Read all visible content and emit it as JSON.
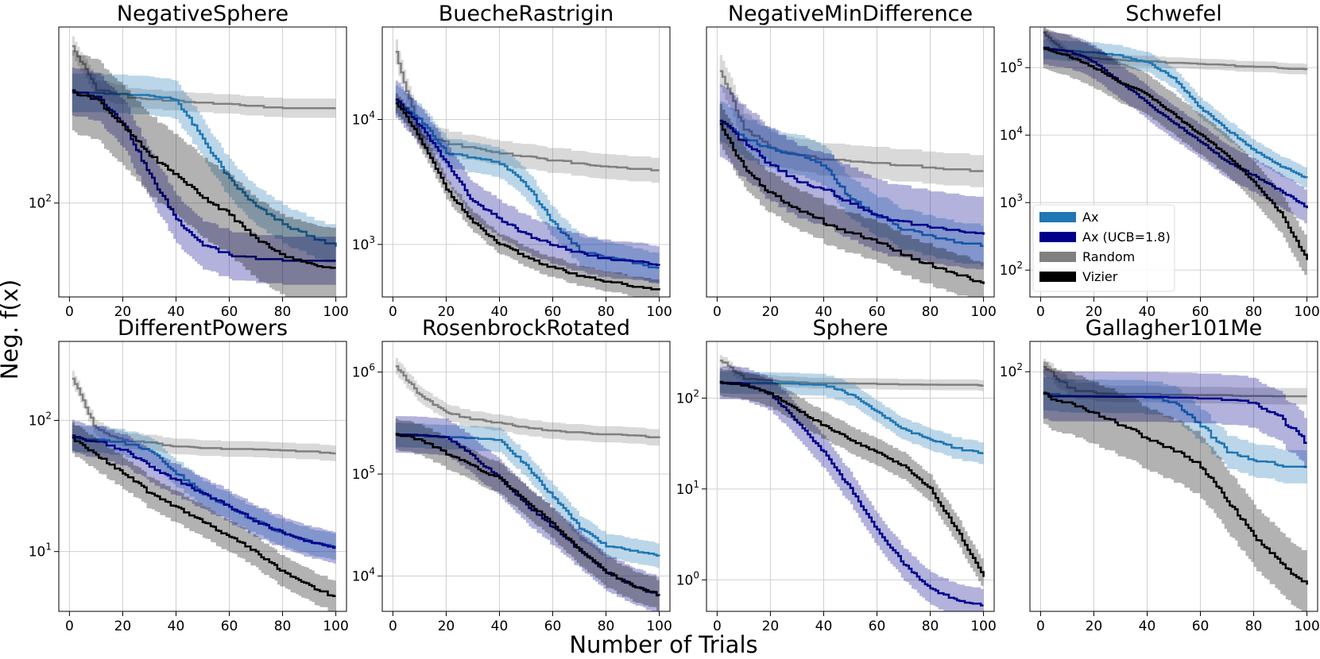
{
  "figure": {
    "ylabel": "Neg. f(x)",
    "xlabel": "Number of Trials"
  },
  "legend": {
    "location": "inside Schwefel panel, lower-left",
    "entries": [
      {
        "name": "Ax",
        "color": "#1f77b4"
      },
      {
        "name": "Ax (UCB=1.8)",
        "color": "#00008b"
      },
      {
        "name": "Random",
        "color": "#808080"
      },
      {
        "name": "Vizier",
        "color": "#000000"
      }
    ]
  },
  "colors": {
    "Ax": "#1f77b4",
    "Ax (UCB=1.8)": "#00008b",
    "Random": "#808080",
    "Vizier": "#000000",
    "grid": "#d0d0d0"
  },
  "chart_data": [
    {
      "type": "line",
      "title": "NegativeSphere",
      "yscale": "log",
      "xlim": [
        -4,
        104
      ],
      "ylim": [
        26,
        1250
      ],
      "xticks": [
        0,
        20,
        40,
        60,
        80,
        100
      ],
      "xtick_labels": [
        "0",
        "20",
        "40",
        "60",
        "80",
        "100"
      ],
      "yticks": [
        100
      ],
      "ytick_labels": [
        "10^2"
      ],
      "x": [
        0,
        10,
        20,
        30,
        40,
        50,
        60,
        70,
        80,
        90,
        100
      ],
      "series": [
        {
          "name": "Ax",
          "values": [
            500,
            490,
            485,
            480,
            440,
            250,
            140,
            95,
            75,
            62,
            55
          ],
          "band": 0.12
        },
        {
          "name": "Ax (UCB=1.8)",
          "values": [
            500,
            470,
            320,
            150,
            80,
            55,
            48,
            46,
            45,
            45,
            45
          ],
          "band": 0.15
        },
        {
          "name": "Random",
          "values": [
            1000,
            520,
            470,
            450,
            440,
            430,
            420,
            410,
            400,
            400,
            400
          ],
          "band": 0.06
        },
        {
          "name": "Vizier",
          "values": [
            500,
            450,
            300,
            200,
            150,
            110,
            85,
            60,
            48,
            42,
            40
          ],
          "band": 0.25
        }
      ]
    },
    {
      "type": "line",
      "title": "BuecheRastrigin",
      "yscale": "log",
      "xlim": [
        -4,
        104
      ],
      "ylim": [
        380,
        55000
      ],
      "xticks": [
        0,
        20,
        40,
        60,
        80,
        100
      ],
      "xtick_labels": [
        "0",
        "20",
        "40",
        "60",
        "80",
        "100"
      ],
      "yticks": [
        1000,
        10000
      ],
      "ytick_labels": [
        "10^3",
        "10^4"
      ],
      "x": [
        0,
        10,
        20,
        30,
        40,
        50,
        60,
        70,
        80,
        90,
        100
      ],
      "series": [
        {
          "name": "Ax",
          "values": [
            15000,
            10000,
            5500,
            5000,
            4500,
            3000,
            1500,
            900,
            800,
            720,
            650
          ],
          "band": 0.12
        },
        {
          "name": "Ax (UCB=1.8)",
          "values": [
            15000,
            9000,
            4500,
            2200,
            1600,
            1200,
            1000,
            850,
            780,
            740,
            700
          ],
          "band": 0.15
        },
        {
          "name": "Random",
          "values": [
            40000,
            7500,
            6500,
            6000,
            5500,
            5000,
            4800,
            4500,
            4300,
            4100,
            4000
          ],
          "band": 0.1
        },
        {
          "name": "Vizier",
          "values": [
            15000,
            7000,
            2800,
            1500,
            1000,
            800,
            650,
            570,
            510,
            470,
            440
          ],
          "band": 0.08
        }
      ]
    },
    {
      "type": "line",
      "title": "NegativeMinDifference",
      "yscale": "log",
      "xlim": [
        -4,
        104
      ],
      "ylim": [
        5.5,
        120
      ],
      "xticks": [
        0,
        20,
        40,
        60,
        80,
        100
      ],
      "xtick_labels": [
        "0",
        "20",
        "40",
        "60",
        "80",
        "100"
      ],
      "yticks": [],
      "ytick_labels": [],
      "x": [
        0,
        10,
        20,
        30,
        40,
        50,
        60,
        70,
        80,
        90,
        100
      ],
      "series": [
        {
          "name": "Ax",
          "values": [
            42,
            34,
            30,
            28,
            25,
            17,
            14,
            12,
            11,
            10.5,
            10
          ],
          "band": 0.1
        },
        {
          "name": "Ax (UCB=1.8)",
          "values": [
            42,
            32,
            25,
            21,
            19,
            16,
            14,
            13,
            12.5,
            12,
            11.5
          ],
          "band": 0.18
        },
        {
          "name": "Random",
          "values": [
            80,
            38,
            30,
            28,
            27,
            26.5,
            26,
            25,
            24.5,
            24,
            23
          ],
          "band": 0.08
        },
        {
          "name": "Vizier",
          "values": [
            42,
            24,
            18,
            15,
            13,
            11.5,
            10.5,
            9,
            8,
            7.2,
            6.5
          ],
          "band": 0.1
        }
      ]
    },
    {
      "type": "line",
      "title": "Schwefel",
      "yscale": "log",
      "xlim": [
        -4,
        104
      ],
      "ylim": [
        40,
        400000
      ],
      "xticks": [
        0,
        20,
        40,
        60,
        80,
        100
      ],
      "xtick_labels": [
        "0",
        "20",
        "40",
        "60",
        "80",
        "100"
      ],
      "yticks": [
        100,
        1000,
        10000,
        100000
      ],
      "ytick_labels": [
        "10^2",
        "10^3",
        "10^4",
        "10^5"
      ],
      "x": [
        0,
        10,
        20,
        30,
        40,
        50,
        60,
        70,
        80,
        90,
        100
      ],
      "series": [
        {
          "name": "Ax",
          "values": [
            190000,
            180000,
            170000,
            150000,
            120000,
            70000,
            25000,
            12000,
            6000,
            3500,
            2300
          ],
          "band": 0.15
        },
        {
          "name": "Ax (UCB=1.8)",
          "values": [
            200000,
            180000,
            120000,
            60000,
            30000,
            15000,
            8000,
            4000,
            2500,
            1500,
            850
          ],
          "band": 0.25
        },
        {
          "name": "Random",
          "values": [
            350000,
            160000,
            140000,
            130000,
            125000,
            120000,
            115000,
            110000,
            105000,
            100000,
            95000
          ],
          "band": 0.08
        },
        {
          "name": "Vizier",
          "values": [
            200000,
            150000,
            100000,
            60000,
            40000,
            20000,
            10000,
            5000,
            2000,
            700,
            140
          ],
          "band": 0.3
        }
      ]
    },
    {
      "type": "line",
      "title": "DifferentPowers",
      "yscale": "log",
      "xlim": [
        -4,
        104
      ],
      "ylim": [
        3.5,
        400
      ],
      "xticks": [
        0,
        20,
        40,
        60,
        80,
        100
      ],
      "xtick_labels": [
        "0",
        "20",
        "40",
        "60",
        "80",
        "100"
      ],
      "yticks": [
        10,
        100
      ],
      "ytick_labels": [
        "10^1",
        "10^2"
      ],
      "x": [
        0,
        10,
        20,
        30,
        40,
        50,
        60,
        70,
        80,
        90,
        100
      ],
      "series": [
        {
          "name": "Ax",
          "values": [
            75,
            72,
            68,
            60,
            40,
            28,
            22,
            17,
            14,
            12,
            11
          ],
          "band": 0.1
        },
        {
          "name": "Ax (UCB=1.8)",
          "values": [
            75,
            70,
            60,
            45,
            35,
            28,
            22,
            17,
            14,
            12,
            10.8
          ],
          "band": 0.12
        },
        {
          "name": "Random",
          "values": [
            230,
            85,
            72,
            68,
            65,
            63,
            62,
            61,
            60,
            59,
            56
          ],
          "band": 0.06
        },
        {
          "name": "Vizier",
          "values": [
            75,
            55,
            40,
            28,
            22,
            17,
            13,
            10,
            7,
            5.5,
            4.5
          ],
          "band": 0.12
        }
      ]
    },
    {
      "type": "line",
      "title": "RosenbrockRotated",
      "yscale": "log",
      "xlim": [
        -4,
        104
      ],
      "ylim": [
        4500,
        2000000
      ],
      "xticks": [
        0,
        20,
        40,
        60,
        80,
        100
      ],
      "xtick_labels": [
        "0",
        "20",
        "40",
        "60",
        "80",
        "100"
      ],
      "yticks": [
        10000,
        100000,
        1000000
      ],
      "ytick_labels": [
        "10^4",
        "10^5",
        "10^6"
      ],
      "x": [
        0,
        10,
        20,
        30,
        40,
        50,
        60,
        70,
        80,
        90,
        100
      ],
      "series": [
        {
          "name": "Ax",
          "values": [
            250000,
            240000,
            235000,
            230000,
            220000,
            120000,
            60000,
            30000,
            20000,
            18000,
            16000
          ],
          "band": 0.12
        },
        {
          "name": "Ax (UCB=1.8)",
          "values": [
            250000,
            245000,
            235000,
            150000,
            90000,
            50000,
            30000,
            18000,
            11000,
            8000,
            6500
          ],
          "band": 0.18
        },
        {
          "name": "Random",
          "values": [
            1200000,
            600000,
            400000,
            350000,
            320000,
            290000,
            270000,
            260000,
            250000,
            240000,
            230000
          ],
          "band": 0.08
        },
        {
          "name": "Vizier",
          "values": [
            250000,
            220000,
            160000,
            120000,
            90000,
            55000,
            32000,
            18000,
            11000,
            8000,
            6500
          ],
          "band": 0.15
        }
      ]
    },
    {
      "type": "line",
      "title": "Sphere",
      "yscale": "log",
      "xlim": [
        -4,
        104
      ],
      "ylim": [
        0.45,
        420
      ],
      "xticks": [
        0,
        20,
        40,
        60,
        80,
        100
      ],
      "xtick_labels": [
        "0",
        "20",
        "40",
        "60",
        "80",
        "100"
      ],
      "yticks": [
        1,
        10,
        100
      ],
      "ytick_labels": [
        "10^0",
        "10^1",
        "10^2"
      ],
      "x": [
        0,
        10,
        20,
        30,
        40,
        50,
        60,
        70,
        80,
        90,
        100
      ],
      "series": [
        {
          "name": "Ax",
          "values": [
            150,
            150,
            148,
            145,
            140,
            110,
            70,
            45,
            35,
            28,
            25
          ],
          "band": 0.12
        },
        {
          "name": "Ax (UCB=1.8)",
          "values": [
            150,
            145,
            110,
            55,
            25,
            10,
            3.5,
            1.5,
            0.8,
            0.6,
            0.53
          ],
          "band": 0.18
        },
        {
          "name": "Random",
          "values": [
            280,
            165,
            155,
            150,
            148,
            147,
            146,
            145,
            144,
            143,
            140
          ],
          "band": 0.06
        },
        {
          "name": "Vizier",
          "values": [
            150,
            140,
            110,
            75,
            50,
            35,
            25,
            18,
            10,
            3.5,
            1.1
          ],
          "band": 0.15
        }
      ]
    },
    {
      "type": "line",
      "title": "Gallagher101Me",
      "yscale": "log",
      "xlim": [
        -4,
        104
      ],
      "ylim": [
        7,
        140
      ],
      "xticks": [
        0,
        20,
        40,
        60,
        80,
        100
      ],
      "xtick_labels": [
        "0",
        "20",
        "40",
        "60",
        "80",
        "100"
      ],
      "yticks": [
        100
      ],
      "ytick_labels": [
        "10^2"
      ],
      "x": [
        0,
        10,
        20,
        30,
        40,
        50,
        60,
        70,
        80,
        90,
        100
      ],
      "series": [
        {
          "name": "Ax",
          "values": [
            78,
            78,
            78,
            78,
            77,
            72,
            55,
            42,
            38,
            36,
            35
          ],
          "band": 0.08
        },
        {
          "name": "Ax (UCB=1.8)",
          "values": [
            78,
            78,
            78,
            78,
            78,
            77,
            76,
            75,
            72,
            60,
            45
          ],
          "band": 0.12
        },
        {
          "name": "Random",
          "values": [
            110,
            84,
            81,
            80,
            80,
            79,
            79,
            79,
            78,
            78,
            78
          ],
          "band": 0.04
        },
        {
          "name": "Vizier",
          "values": [
            78,
            72,
            64,
            56,
            48,
            42,
            35,
            24,
            16,
            12,
            9.5
          ],
          "band": 0.15
        }
      ]
    }
  ]
}
